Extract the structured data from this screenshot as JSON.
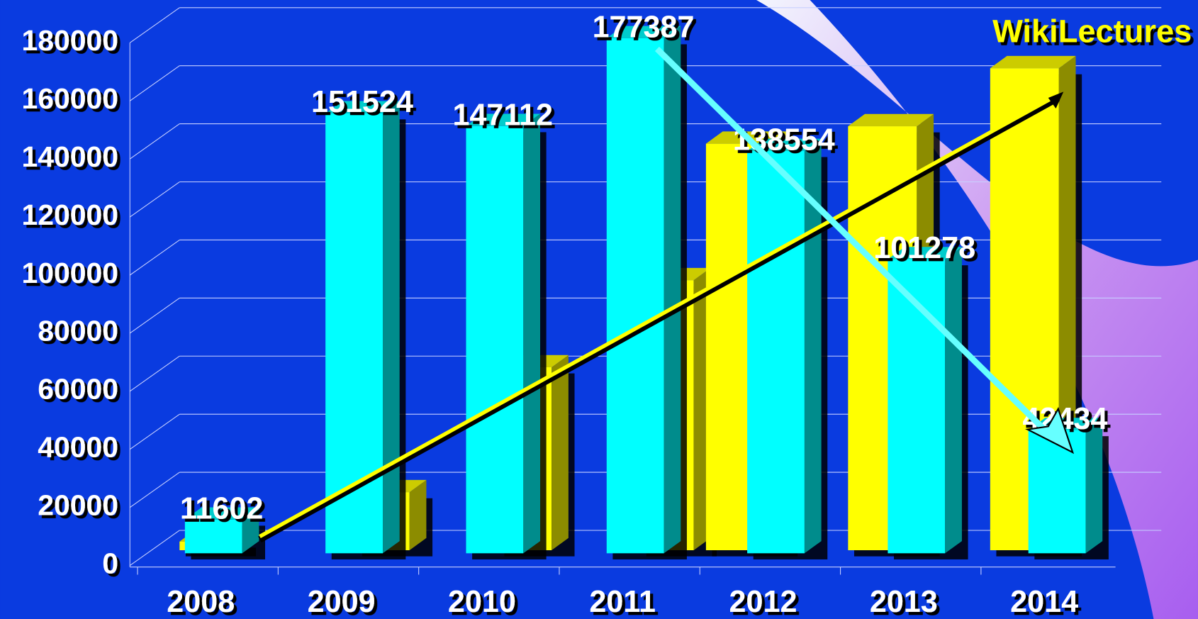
{
  "chart_data": {
    "type": "bar3d",
    "title": "WikiLectures",
    "categories": [
      "2008",
      "2009",
      "2010",
      "2011",
      "2012",
      "2013",
      "2014"
    ],
    "series": [
      {
        "name": null,
        "color": "#ffff00",
        "values": [
          3000,
          20000,
          63000,
          93000,
          140000,
          146000,
          166000
        ]
      },
      {
        "name": null,
        "color": "#00ffff",
        "values": [
          11602,
          151524,
          147112,
          177387,
          138554,
          101278,
          42434
        ]
      }
    ],
    "ylim": [
      0,
      180000
    ],
    "yticks": [
      0,
      20000,
      40000,
      60000,
      80000,
      100000,
      120000,
      140000,
      160000,
      180000
    ],
    "grid": true
  }
}
